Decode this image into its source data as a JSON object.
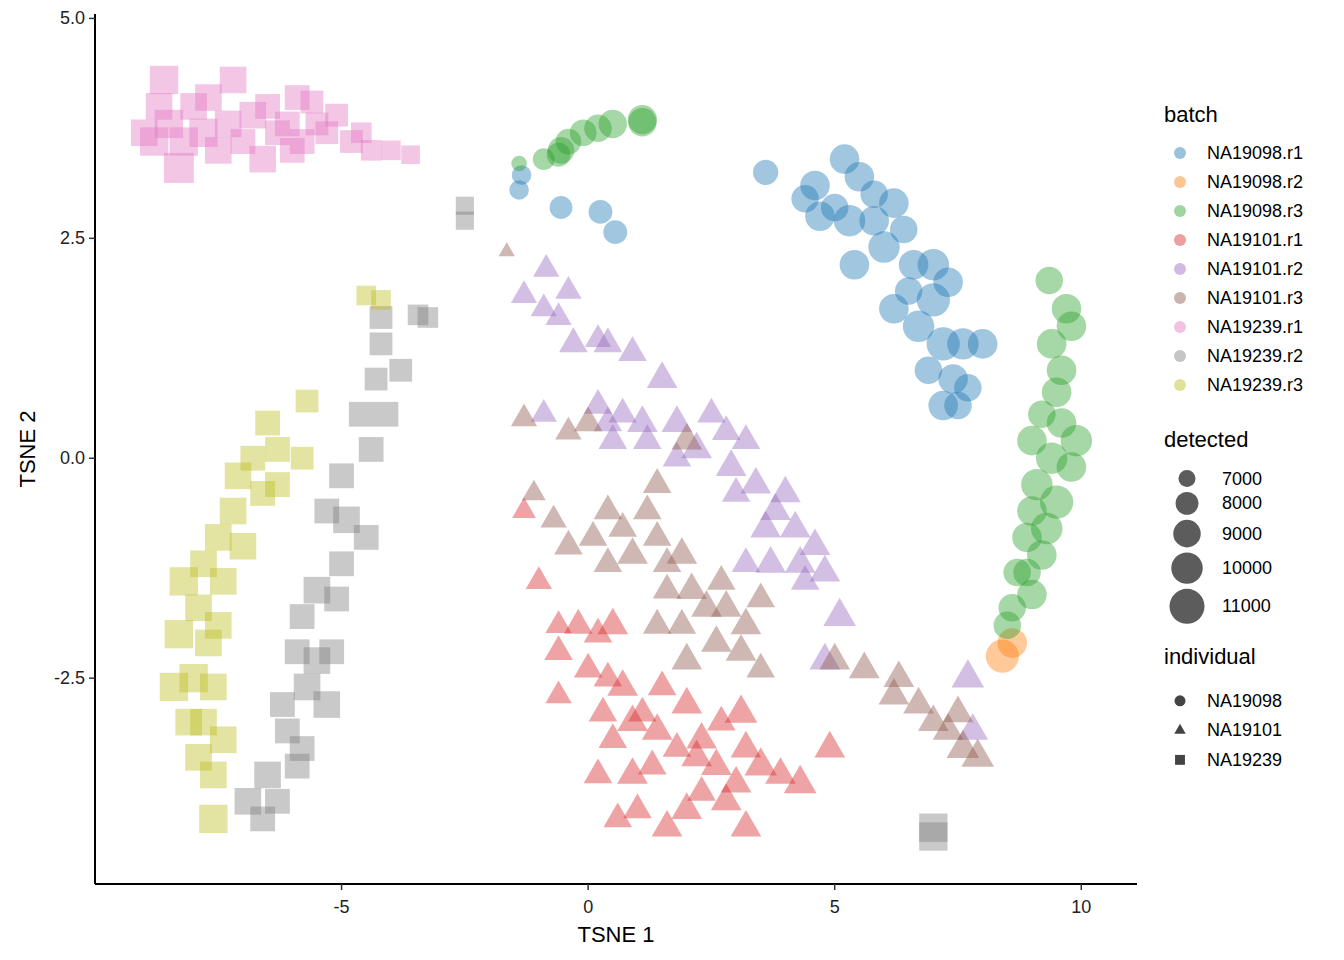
{
  "chart_data": {
    "type": "scatter",
    "x_label": "TSNE 1",
    "y_label": "TSNE 2",
    "xlim": [
      -10,
      11.13
    ],
    "ylim": [
      -4.84,
      5.05
    ],
    "xticks": [
      -5,
      0,
      5,
      10
    ],
    "yticks": [
      {
        "value": -2.5,
        "label": "-2.5"
      },
      {
        "value": 0,
        "label": "0.0"
      },
      {
        "value": 2.5,
        "label": "2.5"
      },
      {
        "value": 5,
        "label": "5.0"
      }
    ],
    "color_title": "batch",
    "size_title": "detected",
    "size_ticks": [
      7000,
      8000,
      9000,
      10000,
      11000
    ],
    "shape_title": "individual",
    "shapes": [
      {
        "name": "NA19098",
        "marker": "circle"
      },
      {
        "name": "NA19101",
        "marker": "triangle"
      },
      {
        "name": "NA19239",
        "marker": "square"
      }
    ],
    "series": [
      {
        "name": "NA19098.r1",
        "color": "#1F77B4",
        "marker": "circle",
        "x": [
          3.6,
          4.4,
          4.6,
          5.2,
          5.5,
          5.8,
          6.2,
          5.3,
          5.8,
          6.4,
          5.4,
          6.0,
          6.6,
          7.0,
          7.3,
          6.2,
          6.7,
          7.2,
          7.6,
          8.0,
          6.9,
          7.4,
          7.7,
          7.2,
          7.5,
          6.5,
          -0.55,
          0.25,
          0.55,
          -1.4,
          -1.35,
          5.0,
          4.7,
          7.0
        ],
        "values": [
          3.25,
          2.95,
          3.1,
          3.4,
          3.2,
          3.0,
          2.9,
          2.7,
          2.7,
          2.6,
          2.2,
          2.4,
          2.2,
          2.2,
          2.0,
          1.7,
          1.5,
          1.3,
          1.3,
          1.3,
          1.0,
          0.9,
          0.8,
          0.6,
          0.6,
          1.9,
          2.85,
          2.8,
          2.57,
          3.05,
          3.22,
          2.85,
          2.75,
          1.8
        ],
        "size": [
          8500,
          9000,
          9500,
          9500,
          9500,
          9000,
          9500,
          10000,
          9500,
          9000,
          9500,
          10000,
          9500,
          10000,
          9500,
          9500,
          10000,
          10500,
          10000,
          9500,
          9000,
          9500,
          9000,
          9500,
          9000,
          9000,
          8000,
          8200,
          8200,
          7400,
          7400,
          9000,
          9500,
          10500
        ]
      },
      {
        "name": "NA19098.r2",
        "color": "#FF7F0E",
        "marker": "circle",
        "x": [
          8.4,
          8.6
        ],
        "values": [
          -2.25,
          -2.1
        ],
        "size": [
          10500,
          9500
        ]
      },
      {
        "name": "NA19098.r3",
        "color": "#2CA02C",
        "marker": "circle",
        "x": [
          -1.4,
          -0.9,
          -0.6,
          -0.4,
          -0.1,
          0.2,
          0.5,
          1.1,
          1.1,
          -0.55,
          9.35,
          9.7,
          9.8,
          9.4,
          9.6,
          9.5,
          9.2,
          9.6,
          9.0,
          9.9,
          9.4,
          9.8,
          9.1,
          9.5,
          9.0,
          9.3,
          8.9,
          9.2,
          8.9,
          8.7,
          9.0,
          8.6,
          8.5
        ],
        "values": [
          3.35,
          3.4,
          3.45,
          3.6,
          3.7,
          3.75,
          3.8,
          3.85,
          3.82,
          3.5,
          2.02,
          1.7,
          1.5,
          1.3,
          1.0,
          0.75,
          0.5,
          0.4,
          0.2,
          0.2,
          0.0,
          -0.1,
          -0.3,
          -0.5,
          -0.6,
          -0.8,
          -0.9,
          -1.1,
          -1.3,
          -1.3,
          -1.55,
          -1.7,
          -1.9
        ],
        "size": [
          6800,
          7800,
          8200,
          8600,
          8800,
          9000,
          9200,
          9400,
          9200,
          8800,
          9000,
          9500,
          9500,
          9500,
          9500,
          9500,
          9000,
          9500,
          9500,
          10000,
          10000,
          9500,
          10000,
          10500,
          9500,
          10000,
          9500,
          9500,
          9000,
          9000,
          9500,
          9000,
          9000
        ]
      },
      {
        "name": "NA19101.r1",
        "color": "#D62728",
        "marker": "triangle",
        "x": [
          -1.3,
          -1.0,
          -0.6,
          -0.6,
          -0.2,
          0.2,
          0.5,
          0.0,
          0.4,
          0.7,
          -0.6,
          0.3,
          0.9,
          1.1,
          0.5,
          1.4,
          1.8,
          2.3,
          0.2,
          0.9,
          1.3,
          2.2,
          2.7,
          3.1,
          2.6,
          3.2,
          3.5,
          3.9,
          4.3,
          2.3,
          2.8,
          3.2,
          1.0,
          1.6,
          2.0,
          0.6,
          3.0,
          4.9,
          1.5,
          2.0
        ],
        "values": [
          -0.6,
          -1.4,
          -1.9,
          -2.2,
          -1.9,
          -2.0,
          -1.9,
          -2.4,
          -2.5,
          -2.6,
          -2.7,
          -2.9,
          -3.0,
          -2.9,
          -3.2,
          -3.1,
          -3.3,
          -3.2,
          -3.6,
          -3.6,
          -3.5,
          -3.4,
          -3.0,
          -2.9,
          -3.5,
          -3.3,
          -3.5,
          -3.6,
          -3.7,
          -3.8,
          -3.9,
          -4.2,
          -4.0,
          -4.2,
          -4.0,
          -4.1,
          -3.7,
          -3.3,
          -2.6,
          -2.8
        ],
        "size": [
          8000,
          8500,
          8500,
          9000,
          9000,
          9000,
          9500,
          9000,
          9000,
          9500,
          8500,
          9000,
          9500,
          9000,
          9000,
          9500,
          9000,
          9500,
          9000,
          9500,
          9000,
          9500,
          9000,
          10000,
          9500,
          9500,
          10000,
          9500,
          10000,
          9000,
          9500,
          9500,
          9000,
          9500,
          9500,
          9000,
          9500,
          9500,
          9000,
          9500
        ]
      },
      {
        "name": "NA19101.r2",
        "color": "#9467BD",
        "marker": "triangle",
        "x": [
          -0.85,
          -1.3,
          -0.9,
          -0.4,
          -0.6,
          -0.3,
          0.2,
          0.4,
          0.9,
          1.5,
          0.2,
          0.4,
          0.7,
          1.1,
          -0.9,
          0.5,
          1.2,
          1.8,
          2.5,
          2.8,
          3.2,
          2.2,
          2.9,
          3.4,
          3.8,
          3.0,
          3.6,
          4.0,
          4.2,
          3.7,
          4.3,
          4.6,
          4.8,
          4.4,
          5.1,
          4.8,
          7.7,
          7.8,
          3.2,
          1.8
        ],
        "values": [
          2.15,
          1.85,
          1.7,
          1.9,
          1.6,
          1.3,
          1.35,
          1.3,
          1.2,
          0.9,
          0.6,
          0.4,
          0.5,
          0.4,
          0.5,
          0.2,
          0.2,
          0.4,
          0.5,
          0.3,
          0.2,
          0.1,
          -0.1,
          -0.3,
          -0.6,
          -0.4,
          -0.8,
          -0.4,
          -0.8,
          -1.2,
          -1.2,
          -1.0,
          -1.3,
          -1.4,
          -1.8,
          -2.3,
          -2.5,
          -3.1,
          -1.2,
          0.0
        ],
        "size": [
          8500,
          8500,
          8500,
          8500,
          8500,
          9000,
          8500,
          9000,
          9000,
          9500,
          9000,
          9000,
          9000,
          9500,
          8500,
          9000,
          9000,
          9500,
          9000,
          9000,
          9000,
          9500,
          9500,
          9500,
          9500,
          9000,
          9500,
          9500,
          9500,
          9500,
          9500,
          9500,
          9500,
          9000,
          10000,
          9500,
          10000,
          9500,
          9000,
          9000
        ]
      },
      {
        "name": "NA19101.r3",
        "color": "#8C564B",
        "marker": "triangle",
        "x": [
          -1.3,
          -0.4,
          0.0,
          2.0,
          -1.1,
          -0.7,
          -0.4,
          0.1,
          0.4,
          0.7,
          1.2,
          1.4,
          0.9,
          1.6,
          1.9,
          0.4,
          2.1,
          1.6,
          1.9,
          2.4,
          2.7,
          2.8,
          3.2,
          3.5,
          2.0,
          2.6,
          3.1,
          3.5,
          1.4,
          1.4,
          5.0,
          5.6,
          6.3,
          6.7,
          7.0,
          7.3,
          7.6,
          7.9,
          6.2,
          7.5,
          -1.65
        ],
        "values": [
          0.45,
          0.3,
          0.4,
          0.2,
          -0.4,
          -0.7,
          -1.0,
          -0.9,
          -0.6,
          -0.8,
          -0.6,
          -0.9,
          -1.1,
          -1.2,
          -1.1,
          -1.2,
          -1.5,
          -1.5,
          -1.9,
          -1.7,
          -1.4,
          -1.7,
          -1.9,
          -1.6,
          -2.3,
          -2.1,
          -2.2,
          -2.4,
          -1.9,
          -0.3,
          -2.3,
          -2.4,
          -2.5,
          -2.8,
          -3.0,
          -3.1,
          -3.3,
          -3.4,
          -2.7,
          -2.9,
          2.35
        ],
        "size": [
          8500,
          8500,
          9000,
          9500,
          8000,
          8500,
          9000,
          9000,
          9000,
          9000,
          9000,
          9000,
          9500,
          9000,
          9500,
          9000,
          9500,
          9000,
          9000,
          9500,
          9000,
          9500,
          9500,
          9000,
          9500,
          9500,
          9500,
          9000,
          9000,
          9000,
          9500,
          9500,
          9500,
          9500,
          9500,
          9500,
          10000,
          10000,
          9500,
          9500,
          6800
        ]
      },
      {
        "name": "NA19239.r1",
        "color": "#E377C2",
        "marker": "square",
        "x": [
          -9.0,
          -8.8,
          -8.7,
          -8.5,
          -8.3,
          -8.2,
          -8.0,
          -7.8,
          -7.7,
          -7.5,
          -7.3,
          -7.2,
          -7.0,
          -6.8,
          -6.6,
          -6.5,
          -6.3,
          -6.1,
          -5.9,
          -5.8,
          -5.5,
          -5.3,
          -5.1,
          -4.8,
          -4.6,
          -4.4,
          -4.0,
          -3.6,
          -8.6,
          -6.0,
          -5.6
        ],
        "values": [
          3.7,
          3.6,
          4.0,
          3.8,
          3.3,
          3.6,
          4.0,
          3.7,
          4.1,
          3.5,
          3.8,
          4.3,
          3.6,
          3.9,
          3.4,
          4.0,
          3.7,
          3.8,
          4.1,
          3.6,
          3.8,
          3.7,
          3.9,
          3.6,
          3.7,
          3.5,
          3.5,
          3.45,
          4.3,
          3.5,
          4.05
        ],
        "size": [
          9500,
          10000,
          9500,
          10000,
          10500,
          10000,
          9500,
          10000,
          9500,
          9500,
          9500,
          9500,
          9000,
          9500,
          9500,
          9000,
          9000,
          9000,
          9000,
          9000,
          8500,
          8500,
          8500,
          8500,
          8000,
          8000,
          7800,
          7600,
          10000,
          9000,
          8500
        ]
      },
      {
        "name": "NA19239.r2",
        "color": "#7F7F7F",
        "marker": "square",
        "x": [
          -2.5,
          -2.5,
          -3.45,
          -3.25,
          -4.2,
          -4.2,
          -3.8,
          -4.3,
          -4.6,
          -4.4,
          -5.3,
          -4.9,
          -4.5,
          -5.0,
          -5.5,
          -5.8,
          -5.1,
          -5.9,
          -5.5,
          -5.2,
          -6.2,
          -5.7,
          -5.3,
          -6.1,
          -5.9,
          -6.5,
          -6.3,
          -6.9,
          -6.6,
          -5.8,
          -5.0,
          -4.1,
          7.0,
          7.0
        ],
        "values": [
          2.87,
          2.7,
          1.63,
          1.6,
          1.6,
          1.3,
          1.0,
          0.9,
          0.5,
          0.1,
          -0.6,
          -0.7,
          -0.9,
          -1.2,
          -1.5,
          -1.8,
          -1.6,
          -2.2,
          -2.3,
          -2.2,
          -2.8,
          -2.6,
          -2.8,
          -3.1,
          -3.5,
          -3.6,
          -3.9,
          -3.9,
          -4.1,
          -3.3,
          -0.2,
          0.5,
          -4.3,
          -4.2
        ],
        "size": [
          7500,
          7500,
          8000,
          8000,
          8500,
          8500,
          8500,
          8500,
          9000,
          9000,
          9000,
          9500,
          9000,
          9000,
          9500,
          9000,
          9000,
          9000,
          9500,
          9000,
          9000,
          9500,
          9500,
          9000,
          9000,
          9500,
          9000,
          9500,
          9000,
          9000,
          9000,
          9000,
          10000,
          10000
        ]
      },
      {
        "name": "NA19239.r3",
        "color": "#BCBD22",
        "marker": "square",
        "x": [
          -4.5,
          -4.2,
          -5.7,
          -6.5,
          -6.3,
          -6.8,
          -7.1,
          -6.6,
          -7.2,
          -7.5,
          -7.0,
          -7.8,
          -8.2,
          -7.4,
          -7.9,
          -7.5,
          -8.3,
          -7.7,
          -8.0,
          -8.4,
          -7.6,
          -7.8,
          -8.1,
          -7.4,
          -7.6,
          -7.6,
          -7.9,
          -6.3,
          -5.8
        ],
        "values": [
          1.85,
          1.8,
          0.65,
          0.4,
          0.1,
          0.0,
          -0.2,
          -0.4,
          -0.6,
          -0.9,
          -1.0,
          -1.2,
          -1.4,
          -1.4,
          -1.7,
          -1.9,
          -2.0,
          -2.1,
          -2.5,
          -2.6,
          -2.6,
          -3.0,
          -3.0,
          -3.2,
          -3.6,
          -4.1,
          -3.4,
          -0.3,
          0.0
        ],
        "size": [
          7800,
          7800,
          8500,
          9000,
          9000,
          9000,
          9500,
          9000,
          9500,
          9500,
          9500,
          9500,
          10000,
          9500,
          9500,
          9500,
          10000,
          9500,
          10000,
          10000,
          9500,
          9500,
          9500,
          9500,
          9500,
          10000,
          9500,
          9000,
          8500
        ]
      }
    ]
  }
}
